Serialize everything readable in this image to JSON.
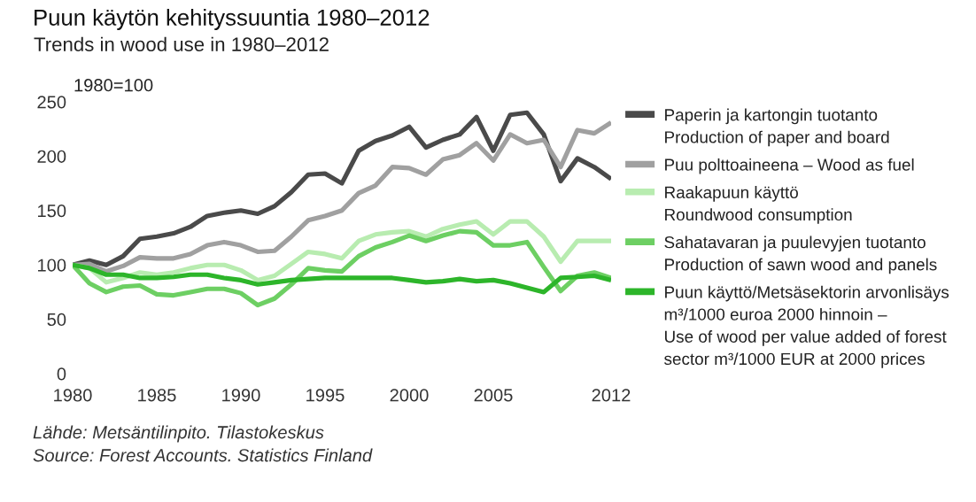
{
  "chart_data": {
    "type": "line",
    "title": "Puun käytön kehityssuuntia 1980–2012",
    "subtitle": "Trends in wood use in 1980–2012",
    "ylabel": "1980=100",
    "x": [
      1980,
      1981,
      1982,
      1983,
      1984,
      1985,
      1986,
      1987,
      1988,
      1989,
      1990,
      1991,
      1992,
      1993,
      1994,
      1995,
      1996,
      1997,
      1998,
      1999,
      2000,
      2001,
      2002,
      2003,
      2004,
      2005,
      2006,
      2007,
      2008,
      2009,
      2010,
      2011,
      2012
    ],
    "series": [
      {
        "name": "Paperin ja kartongin tuotanto\nProduction of paper and board",
        "color": "#4a4a4a",
        "values": [
          100,
          104,
          100,
          108,
          124,
          126,
          129,
          135,
          145,
          148,
          150,
          147,
          154,
          167,
          183,
          184,
          175,
          205,
          214,
          219,
          227,
          208,
          215,
          220,
          236,
          205,
          238,
          240,
          220,
          177,
          198,
          190,
          179
        ]
      },
      {
        "name": "Puu polttoaineena – Wood as fuel",
        "color": "#a0a0a0",
        "values": [
          100,
          101,
          94,
          99,
          107,
          106,
          106,
          110,
          118,
          121,
          118,
          112,
          113,
          126,
          141,
          145,
          150,
          166,
          173,
          190,
          189,
          183,
          197,
          201,
          212,
          196,
          220,
          212,
          215,
          190,
          224,
          221,
          231
        ]
      },
      {
        "name": "Raakapuun käyttö\nRoundwood consumption",
        "color": "#b8ecb0",
        "values": [
          100,
          97,
          84,
          88,
          93,
          91,
          93,
          97,
          100,
          100,
          95,
          86,
          90,
          101,
          112,
          110,
          106,
          122,
          128,
          130,
          131,
          126,
          133,
          137,
          140,
          128,
          140,
          140,
          126,
          103,
          122,
          122,
          122
        ]
      },
      {
        "name": "Sahatavaran ja puulevyjen tuotanto\nProduction of sawn wood and panels",
        "color": "#6dcf63",
        "values": [
          100,
          83,
          75,
          80,
          81,
          73,
          72,
          75,
          78,
          78,
          74,
          63,
          69,
          82,
          97,
          95,
          94,
          108,
          116,
          121,
          127,
          122,
          127,
          131,
          130,
          118,
          118,
          121,
          98,
          76,
          90,
          93,
          88
        ]
      },
      {
        "name": "Puun käyttö/Metsäsektorin arvonlisäys\nm³/1000 euroa 2000 hinnoin –\nUse of wood per value added of forest\nsector m³/1000 EUR at 2000 prices",
        "color": "#2db52a",
        "values": [
          100,
          97,
          91,
          91,
          88,
          88,
          89,
          91,
          91,
          88,
          86,
          82,
          84,
          86,
          87,
          88,
          88,
          88,
          88,
          88,
          86,
          84,
          85,
          87,
          85,
          86,
          83,
          79,
          75,
          88,
          89,
          90,
          86
        ]
      }
    ],
    "xlim": [
      1980,
      2012
    ],
    "ylim": [
      0,
      250
    ],
    "xticks": [
      1980,
      1985,
      1990,
      1995,
      2000,
      2005,
      2012
    ],
    "yticks": [
      0,
      50,
      100,
      150,
      200,
      250
    ],
    "grid": false,
    "legend": "right",
    "marker": "none",
    "line_style": "solid",
    "annotations": [
      "Lähde: Metsäntilinpito. Tilastokeskus",
      "Source: Forest Accounts. Statistics Finland"
    ]
  }
}
